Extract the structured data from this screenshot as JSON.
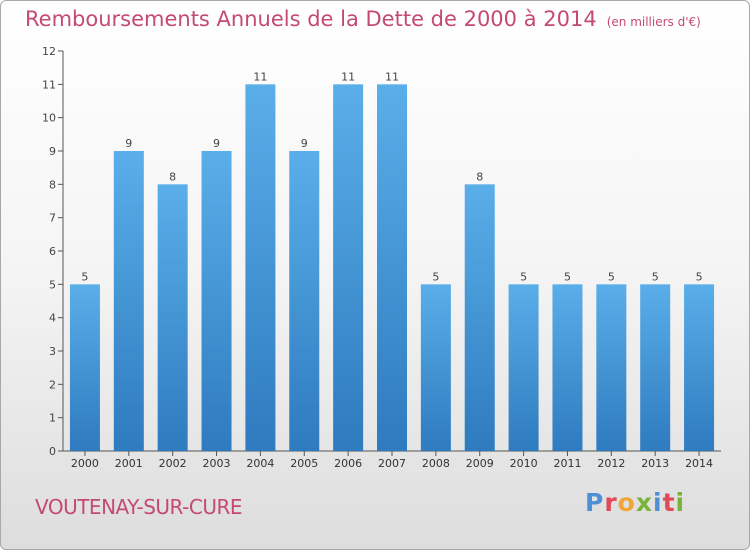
{
  "header": {
    "title": "Remboursements Annuels de la Dette de 2000 à 2014",
    "subtitle": "(en milliers d'€)"
  },
  "footer": {
    "city": "VOUTENAY-SUR-CURE",
    "logo_text": "Proxiti"
  },
  "colors": {
    "title": "#c44a73",
    "bar_top": "#5aaee9",
    "bar_bottom": "#2e7bbf",
    "logo_letters": [
      "#4f8fd6",
      "#e24a58",
      "#f0a63a",
      "#79b43a",
      "#4f8fd6",
      "#e24a58",
      "#79b43a"
    ]
  },
  "chart_data": {
    "type": "bar",
    "title": "Remboursements Annuels de la Dette de 2000 à 2014",
    "ylabel": "en milliers d'€",
    "xlabel": "",
    "ylim": [
      0,
      12
    ],
    "yticks": [
      0,
      1,
      2,
      3,
      4,
      5,
      6,
      7,
      8,
      9,
      10,
      11,
      12
    ],
    "grid": false,
    "categories": [
      "2000",
      "2001",
      "2002",
      "2003",
      "2004",
      "2005",
      "2006",
      "2007",
      "2008",
      "2009",
      "2010",
      "2011",
      "2012",
      "2013",
      "2014"
    ],
    "values": [
      5,
      9,
      8,
      9,
      11,
      9,
      11,
      11,
      5,
      8,
      5,
      5,
      5,
      5,
      5
    ]
  }
}
